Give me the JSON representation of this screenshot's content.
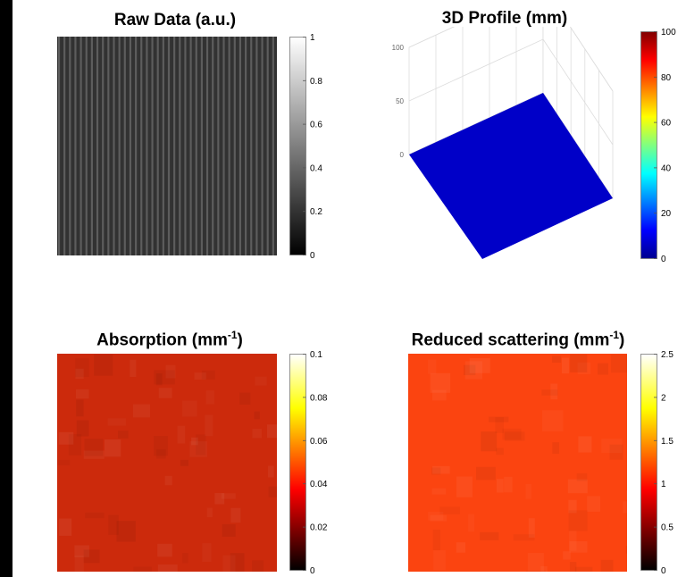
{
  "chart_data": [
    {
      "type": "heatmap",
      "panel": "raw",
      "title": "Raw Data (a.u.)",
      "colormap": "gray",
      "fill_color": "#3a3a3a",
      "stripe_color_light": "#6a6a6a",
      "stripe_color_dark": "#2e2e2e",
      "stripe_count": 40,
      "colorbar_range": [
        0,
        1
      ],
      "colorbar_ticks": [
        "0",
        "0.2",
        "0.4",
        "0.6",
        "0.8",
        "1"
      ]
    },
    {
      "type": "surface",
      "panel": "profile",
      "title": "3D Profile (mm)",
      "colormap": "jet",
      "surface_color": "#0000c8",
      "z_range": [
        0,
        100
      ],
      "z_ticks": [
        "0",
        "50",
        "100"
      ],
      "colorbar_range": [
        0,
        100
      ],
      "colorbar_ticks": [
        "0",
        "20",
        "40",
        "60",
        "80",
        "100"
      ]
    },
    {
      "type": "heatmap",
      "panel": "absorption",
      "title_main": "Absorption (mm",
      "title_sup": "-1",
      "title_end": ")",
      "colormap": "hot",
      "fill_color": "#cc2a0c",
      "colorbar_range": [
        0,
        0.1
      ],
      "colorbar_ticks": [
        "0",
        "0.02",
        "0.04",
        "0.06",
        "0.08",
        "0.1"
      ]
    },
    {
      "type": "heatmap",
      "panel": "scattering",
      "title_main": "Reduced scattering (mm",
      "title_sup": "-1",
      "title_end": ")",
      "colormap": "hot",
      "fill_color": "#fb4410",
      "colorbar_range": [
        0,
        2.5
      ],
      "colorbar_ticks": [
        "0",
        "0.5",
        "1",
        "1.5",
        "2",
        "2.5"
      ]
    }
  ]
}
